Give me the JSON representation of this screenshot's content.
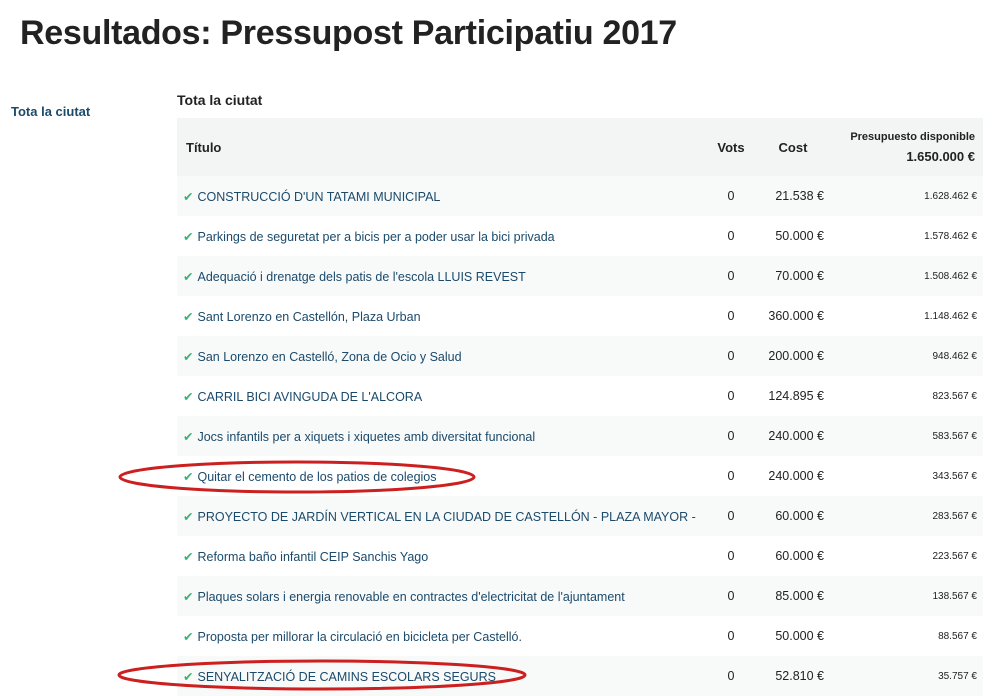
{
  "page_title": "Resultados: Pressupost Participatiu 2017",
  "sidebar": {
    "items": [
      {
        "label": "Tota la ciutat"
      }
    ]
  },
  "section_title": "Tota la ciutat",
  "table": {
    "headers": {
      "title": "Título",
      "votes": "Vots",
      "cost": "Cost",
      "budget": "Presupuesto disponible",
      "budget_total": "1.650.000 €"
    },
    "rows": [
      {
        "title": "CONSTRUCCIÓ D'UN TATAMI MUNICIPAL",
        "votes": "0",
        "cost": "21.538 €",
        "remaining": "1.628.462 €"
      },
      {
        "title": "Parkings de seguretat per a bicis per a poder usar la bici privada",
        "votes": "0",
        "cost": "50.000 €",
        "remaining": "1.578.462 €"
      },
      {
        "title": "Adequació i drenatge dels patis de l'escola LLUIS REVEST",
        "votes": "0",
        "cost": "70.000 €",
        "remaining": "1.508.462 €"
      },
      {
        "title": "Sant Lorenzo en Castellón, Plaza Urban",
        "votes": "0",
        "cost": "360.000 €",
        "remaining": "1.148.462 €"
      },
      {
        "title": "San Lorenzo en Castelló, Zona de Ocio y Salud",
        "votes": "0",
        "cost": "200.000 €",
        "remaining": "948.462 €"
      },
      {
        "title": "CARRIL BICI AVINGUDA DE L'ALCORA",
        "votes": "0",
        "cost": "124.895 €",
        "remaining": "823.567 €"
      },
      {
        "title": "Jocs infantils per a xiquets i xiquetes amb diversitat funcional",
        "votes": "0",
        "cost": "240.000 €",
        "remaining": "583.567 €"
      },
      {
        "title": "Quitar el cemento de los patios de colegios",
        "votes": "0",
        "cost": "240.000 €",
        "remaining": "343.567 €"
      },
      {
        "title": "PROYECTO DE JARDÍN VERTICAL EN LA CIUDAD DE CASTELLÓN - PLAZA MAYOR -",
        "votes": "0",
        "cost": "60.000 €",
        "remaining": "283.567 €"
      },
      {
        "title": "Reforma baño infantil CEIP Sanchis Yago",
        "votes": "0",
        "cost": "60.000 €",
        "remaining": "223.567 €"
      },
      {
        "title": "Plaques solars i energia renovable en contractes d'electricitat de l'ajuntament",
        "votes": "0",
        "cost": "85.000 €",
        "remaining": "138.567 €"
      },
      {
        "title": "Proposta per millorar la circulació en bicicleta per Castelló.",
        "votes": "0",
        "cost": "50.000 €",
        "remaining": "88.567 €"
      },
      {
        "title": "SENYALITZACIÓ DE CAMINS ESCOLARS SEGURS",
        "votes": "0",
        "cost": "52.810 €",
        "remaining": "35.757 €"
      }
    ]
  },
  "colors": {
    "link": "#1b4a6b",
    "check": "#3cb371",
    "annotation": "#cc1f1f"
  },
  "icons": {
    "row_status": "checkmark-icon"
  }
}
